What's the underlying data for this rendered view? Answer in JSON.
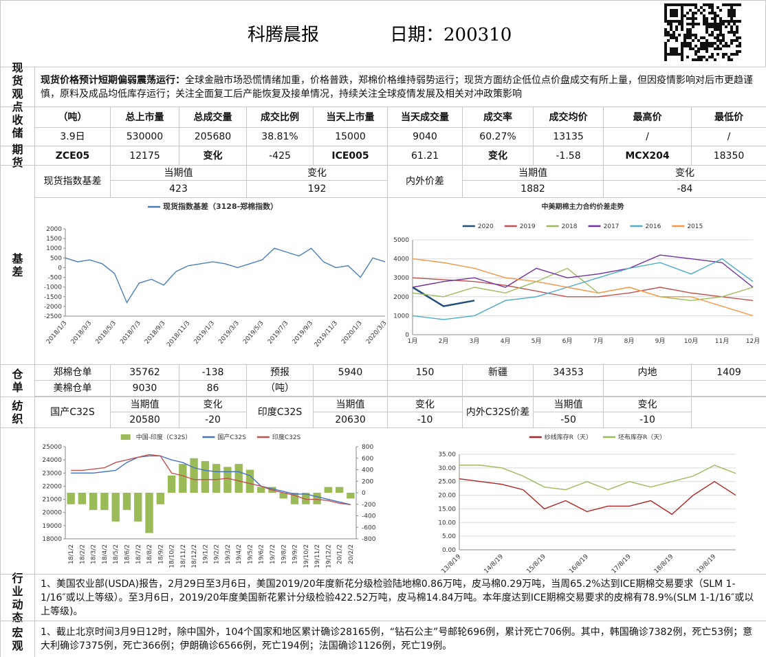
{
  "header": {
    "title": "科腾晨报",
    "date": "日期：200310"
  },
  "labels": {
    "spot_view": "现货观点",
    "reserve": "收储",
    "futures": "期货",
    "basis": "基差",
    "warehouse": "仓单",
    "textile": "纺织",
    "industry": "行业动态",
    "macro": "宏观"
  },
  "spot_view": {
    "lead": "现货价格预计短期偏弱震荡运行：",
    "body": "全球金融市场恐慌情绪加重，价格普跌，郑棉价格维持弱势运行；现货方面纺企低位点价盘成交有所上量，但因疫情影响对后市更趋谨慎，原料及成品均低库存运行；关注全面复工后产能恢复及接单情况，持续关注全球疫情发展及相关对冲政策影响"
  },
  "reserve": {
    "header": [
      "（吨）",
      "总上市量",
      "总成交量",
      "成交比例",
      "当天上市量",
      "当天成交量",
      "成交率",
      "成交均价",
      "最高价",
      "最低价"
    ],
    "row": [
      "3.9日",
      "530000",
      "205680",
      "38.81%",
      "15000",
      "9040",
      "60.27%",
      "13135",
      "/",
      "/"
    ]
  },
  "futures": {
    "row": [
      "ZCE05",
      "12175",
      "变化",
      "-425",
      "ICE005",
      "61.21",
      "变化",
      "-1.58",
      "MCX204",
      "18350"
    ]
  },
  "basis_table": {
    "groups": [
      {
        "name": "现货指数基差",
        "current_label": "当期值",
        "current": "423",
        "change_label": "变化",
        "change": "192"
      },
      {
        "name": "内外价差",
        "current_label": "当期值",
        "current": "1882",
        "change_label": "变化",
        "change": "-84"
      }
    ]
  },
  "warehouse": {
    "rows": [
      [
        "郑棉仓单",
        "35762",
        "-138",
        "预报",
        "5940",
        "150",
        "新疆",
        "34353",
        "内地",
        "1409"
      ],
      [
        "美棉仓单",
        "9030",
        "86",
        "（吨）"
      ]
    ]
  },
  "textile": {
    "groups": [
      {
        "name": "国产C32S",
        "current_label": "当期值",
        "current": "20580",
        "change_label": "变化",
        "change": "-20"
      },
      {
        "name": "印度C32S",
        "current_label": "当期值",
        "current": "20630",
        "change_label": "变化",
        "change": "-10"
      },
      {
        "name": "内外C32S价差",
        "current_label": "当期值",
        "current": "-50",
        "change_label": "变化",
        "change": "-10"
      }
    ]
  },
  "industry": {
    "text": "1、美国农业部(USDA)报告，2月29日至3月6日，美国2019/20年度新花分级检验陆地棉0.86万吨，皮马棉0.29万吨，当周65.2%达到ICE期棉交易要求（SLM 1-1/16″或以上等级）。至3月6日，2019/20年度美国新花累计分级检验422.52万吨，皮马棉14.84万吨。本年度达到ICE期棉交易要求的皮棉有78.9%(SLM 1-1/16″或以上等级)。"
  },
  "macro": {
    "text": "1、截止北京时间3月9日12时，除中国外，104个国家和地区累计确诊28165例，“钻石公主”号邮轮696例，累计死亡706例。其中，韩国确诊7382例，死亡53例；意大利确诊7375例，死亡366例；伊朗确诊6566例，死亡194例；法国确诊1126例，死亡19例。"
  },
  "chart_data": [
    {
      "type": "line",
      "legend": "top",
      "grid": false,
      "categories": [
        "2018/1/3",
        null,
        "2018/3/3",
        null,
        "2018/5/3",
        null,
        "2018/7/3",
        null,
        "2018/9/3",
        null,
        "2018/11/3",
        null,
        "2019/1/3",
        null,
        "2019/3/3",
        null,
        "2019/5/3",
        null,
        "2019/7/3",
        null,
        "2019/9/3",
        null,
        "2019/11/3",
        null,
        "2020/1/3",
        null,
        "2020/3/3"
      ],
      "ylim": [
        -2500,
        2000
      ],
      "yticks": [
        -2500,
        -2000,
        -1500,
        -1000,
        -500,
        0,
        500,
        1000,
        1500,
        2000
      ],
      "series": [
        {
          "name": "现货指数基差（3128-郑棉指数）",
          "color": "#4a7ebb",
          "values": [
            500,
            300,
            400,
            200,
            -300,
            -1800,
            -800,
            -600,
            -900,
            -200,
            100,
            200,
            300,
            200,
            0,
            200,
            400,
            1000,
            800,
            600,
            1000,
            300,
            0,
            100,
            -500,
            500,
            300
          ]
        }
      ]
    },
    {
      "type": "line",
      "title": "中美期棉主力合约价差走势",
      "legend": "top",
      "grid": true,
      "categories": [
        "1月",
        "2月",
        "3月",
        "4月",
        "5月",
        "6月",
        "7月",
        "8月",
        "9月",
        "10月",
        "11月",
        "12月"
      ],
      "ylim": [
        0,
        5000
      ],
      "yticks": [
        0,
        1000,
        2000,
        3000,
        4000,
        5000
      ],
      "series": [
        {
          "name": "2020",
          "color": "#1f4e79",
          "values": [
            2500,
            1500,
            1800,
            null,
            null,
            null,
            null,
            null,
            null,
            null,
            null,
            null
          ]
        },
        {
          "name": "2019",
          "color": "#c0504d",
          "values": [
            3000,
            2900,
            2800,
            2600,
            2300,
            2000,
            2000,
            2200,
            2500,
            2200,
            2000,
            1800
          ]
        },
        {
          "name": "2018",
          "color": "#9bbb59",
          "values": [
            2200,
            2000,
            2500,
            2200,
            2800,
            3500,
            2200,
            2500,
            2000,
            1800,
            2000,
            2500
          ]
        },
        {
          "name": "2017",
          "color": "#7030a0",
          "values": [
            2500,
            2800,
            3000,
            2500,
            3500,
            3000,
            3200,
            3500,
            4200,
            4000,
            3800,
            2500
          ]
        },
        {
          "name": "2016",
          "color": "#4bacc6",
          "values": [
            1000,
            800,
            1000,
            1800,
            2000,
            2500,
            3000,
            3500,
            3800,
            3200,
            4000,
            2800
          ]
        },
        {
          "name": "2015",
          "color": "#f79646",
          "values": [
            4000,
            3800,
            3500,
            3000,
            2800,
            2500,
            2200,
            2500,
            2000,
            2000,
            1500,
            1000
          ]
        }
      ]
    },
    {
      "type": "combo",
      "legend": "top",
      "grid": false,
      "categories": [
        "18/1/2",
        "18/2/2",
        "18/3/2",
        "18/4/2",
        "18/5/2",
        "18/6/2",
        "18/7/2",
        "18/8/2",
        "18/9/2",
        "18/10/2",
        "18/11/2",
        "18/12/2",
        "19/1/2",
        "19/2/2",
        "19/3/2",
        "19/4/2",
        "19/5/2",
        "19/6/2",
        "19/7/2",
        "19/8/2",
        "19/9/2",
        "19/10/2",
        "19/11/2",
        "19/12/2",
        "20/1/2",
        "20/2/2"
      ],
      "ylim": [
        18000,
        25000
      ],
      "yticks": [
        18000,
        19000,
        20000,
        21000,
        22000,
        23000,
        24000,
        25000
      ],
      "y2lim": [
        -800,
        800
      ],
      "y2ticks": [
        -800,
        -600,
        -400,
        -200,
        0,
        200,
        400,
        600,
        800
      ],
      "series": [
        {
          "name": "中国-印度（C32S）",
          "color": "#9bbb59",
          "type": "bar",
          "axis": "y2",
          "values": [
            -200,
            -200,
            -300,
            -300,
            -500,
            -300,
            -500,
            -700,
            -200,
            300,
            500,
            600,
            550,
            500,
            450,
            500,
            400,
            100,
            100,
            -100,
            -200,
            -200,
            -200,
            100,
            100,
            -100
          ]
        },
        {
          "name": "国产C32S",
          "color": "#4472c4",
          "values": [
            23000,
            23000,
            23000,
            23100,
            23200,
            23800,
            24200,
            24300,
            24300,
            24000,
            23800,
            23400,
            23200,
            23100,
            23100,
            23100,
            22800,
            22000,
            21800,
            21600,
            21400,
            21400,
            21200,
            21000,
            20800,
            20600
          ]
        },
        {
          "name": "印度C32S",
          "color": "#c0504d",
          "values": [
            23200,
            23200,
            23300,
            23400,
            23800,
            24000,
            24200,
            24400,
            24300,
            23000,
            22800,
            22500,
            22500,
            22500,
            22600,
            22400,
            22200,
            22000,
            21700,
            21500,
            21300,
            21000,
            21000,
            20900,
            20700,
            20600
          ]
        }
      ]
    },
    {
      "type": "line",
      "legend": "top",
      "grid": true,
      "categories": [
        "13/8/19",
        null,
        "14/8/19",
        null,
        "15/8/19",
        null,
        "16/8/19",
        null,
        "17/8/19",
        null,
        "18/8/19",
        null,
        "19/8/19",
        null
      ],
      "ylim": [
        0,
        35
      ],
      "yticks": [
        {
          "value": 0,
          "label": "0.00"
        },
        {
          "value": 5,
          "label": "5.00"
        },
        {
          "value": 10,
          "label": "10.00"
        },
        {
          "value": 15,
          "label": "15.00"
        },
        {
          "value": 20,
          "label": "20.00"
        },
        {
          "value": 25,
          "label": "25.00"
        },
        {
          "value": 30,
          "label": "30.00"
        },
        {
          "value": 35,
          "label": "35.00"
        }
      ],
      "series": [
        {
          "name": "纱线库存R（天）",
          "color": "#b22222",
          "values": [
            26,
            25,
            24,
            22,
            15,
            18,
            14,
            16,
            16,
            18,
            13,
            20,
            25,
            20
          ]
        },
        {
          "name": "坯布库存R（天）",
          "color": "#9bbb59",
          "values": [
            31,
            31,
            30,
            27,
            23,
            22,
            25,
            22,
            25,
            23,
            25,
            27,
            31,
            28
          ]
        }
      ]
    }
  ]
}
